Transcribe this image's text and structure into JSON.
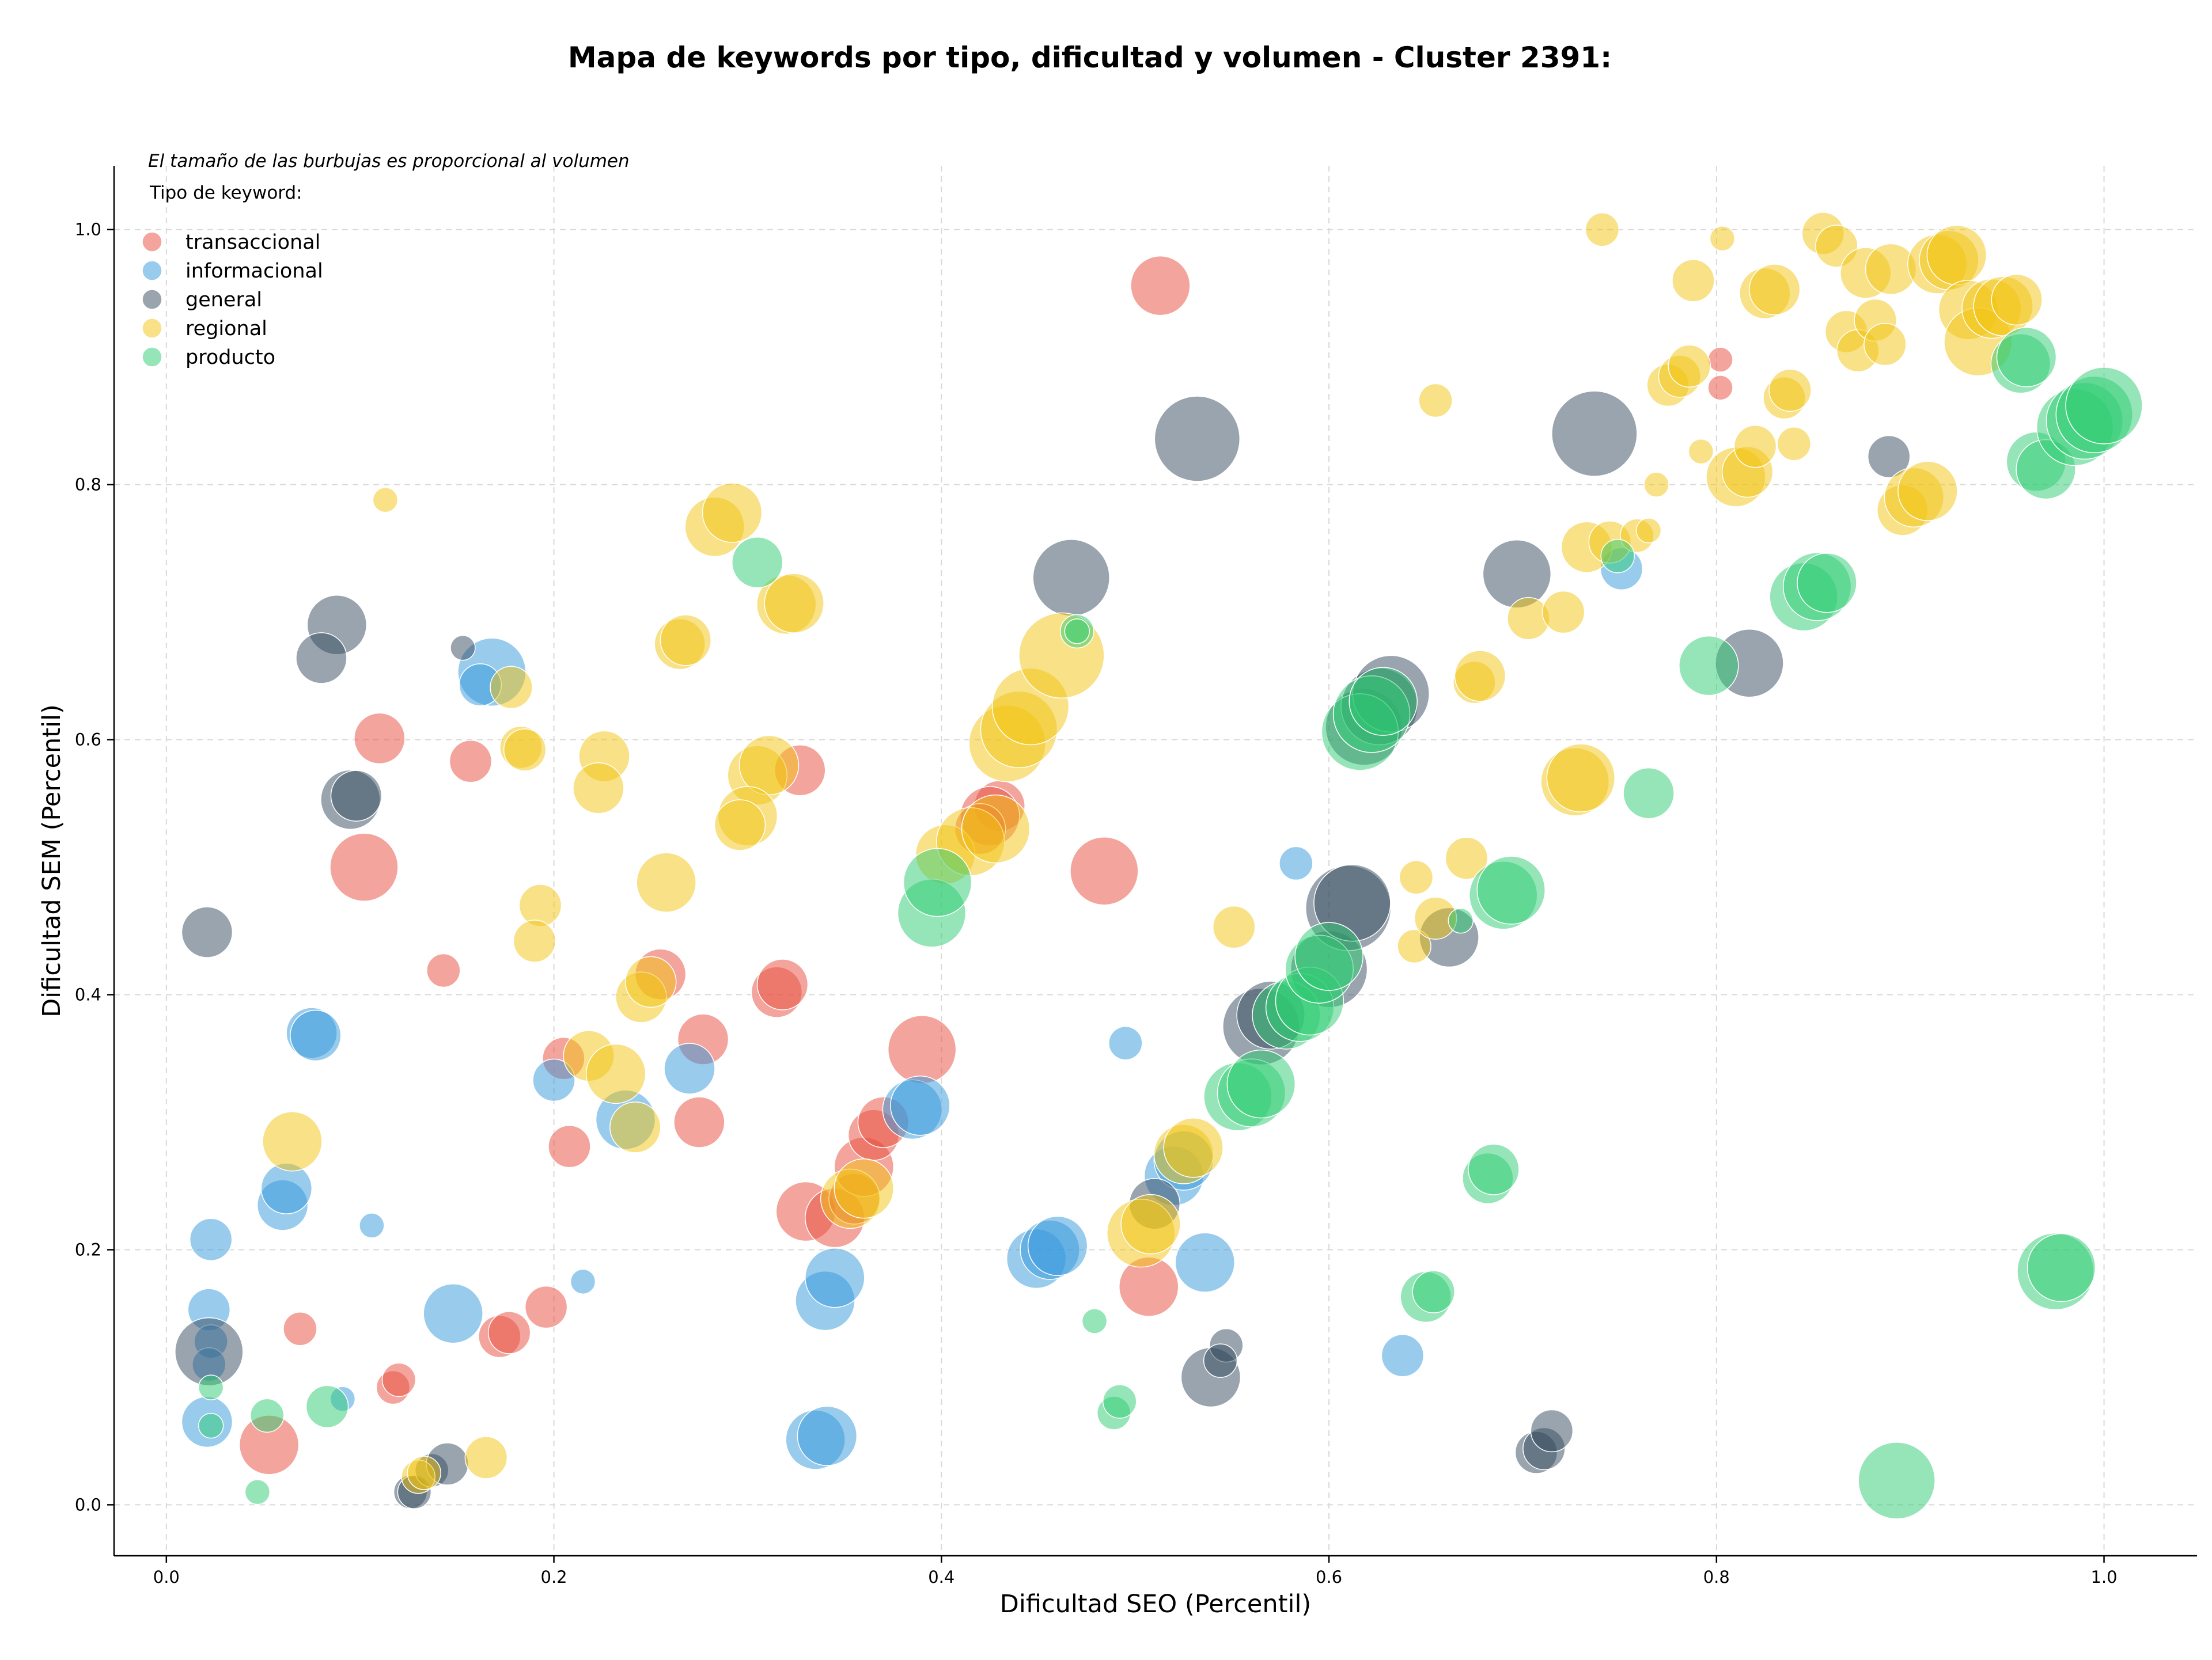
{
  "chart_data": {
    "type": "scatter",
    "title": "Mapa de keywords por tipo, dificultad y volumen - Cluster 2391:",
    "note": "El tamaño de las burbujas es proporcional al volumen",
    "xlabel": "Dificultad SEO (Percentil)",
    "ylabel": "Dificultad SEM (Percentil)",
    "xlim": [
      -0.027,
      1.048
    ],
    "ylim": [
      -0.04,
      1.05
    ],
    "xticks": [
      "0.0",
      "0.2",
      "0.4",
      "0.6",
      "0.8",
      "1.0"
    ],
    "xtick_values": [
      0,
      0.2,
      0.4,
      0.6,
      0.8,
      1.0
    ],
    "yticks": [
      "0.0",
      "0.2",
      "0.4",
      "0.6",
      "0.8",
      "1.0"
    ],
    "ytick_values": [
      0,
      0.2,
      0.4,
      0.6,
      0.8,
      1.0
    ],
    "grid": true,
    "legend": {
      "title": "Tipo de keyword:",
      "placement": "top-left"
    },
    "series": [
      {
        "name": "transaccional",
        "color": "#e74c3c",
        "points": [
          [
            0.513,
            0.956,
            5
          ],
          [
            0.11,
            0.601,
            4
          ],
          [
            0.102,
            0.5,
            6
          ],
          [
            0.157,
            0.583,
            3
          ],
          [
            0.143,
            0.419,
            2
          ],
          [
            0.205,
            0.35,
            3
          ],
          [
            0.208,
            0.281,
            3
          ],
          [
            0.255,
            0.416,
            4
          ],
          [
            0.277,
            0.365,
            4
          ],
          [
            0.275,
            0.3,
            4
          ],
          [
            0.315,
            0.402,
            4
          ],
          [
            0.318,
            0.408,
            4
          ],
          [
            0.327,
            0.576,
            4
          ],
          [
            0.39,
            0.357,
            6
          ],
          [
            0.33,
            0.23,
            5
          ],
          [
            0.345,
            0.225,
            5
          ],
          [
            0.355,
            0.24,
            4
          ],
          [
            0.36,
            0.265,
            5
          ],
          [
            0.365,
            0.29,
            4
          ],
          [
            0.37,
            0.3,
            4
          ],
          [
            0.43,
            0.548,
            4
          ],
          [
            0.425,
            0.54,
            5
          ],
          [
            0.42,
            0.53,
            4
          ],
          [
            0.484,
            0.497,
            6
          ],
          [
            0.507,
            0.171,
            5
          ],
          [
            0.053,
            0.047,
            5
          ],
          [
            0.069,
            0.138,
            2
          ],
          [
            0.117,
            0.092,
            2
          ],
          [
            0.12,
            0.098,
            2
          ],
          [
            0.172,
            0.132,
            3
          ],
          [
            0.177,
            0.135,
            3
          ],
          [
            0.196,
            0.155,
            3
          ],
          [
            0.802,
            0.898,
            1
          ],
          [
            0.802,
            0.876,
            1
          ]
        ]
      },
      {
        "name": "informacional",
        "color": "#3498db",
        "points": [
          [
            0.168,
            0.653,
            6
          ],
          [
            0.162,
            0.643,
            3
          ],
          [
            0.075,
            0.37,
            4
          ],
          [
            0.077,
            0.368,
            4
          ],
          [
            0.023,
            0.208,
            3
          ],
          [
            0.06,
            0.235,
            4
          ],
          [
            0.062,
            0.248,
            4
          ],
          [
            0.106,
            0.219,
            1
          ],
          [
            0.022,
            0.153,
            3
          ],
          [
            0.023,
            0.128,
            2
          ],
          [
            0.022,
            0.11,
            2
          ],
          [
            0.021,
            0.065,
            4
          ],
          [
            0.091,
            0.083,
            1
          ],
          [
            0.148,
            0.15,
            5
          ],
          [
            0.2,
            0.333,
            3
          ],
          [
            0.215,
            0.175,
            1
          ],
          [
            0.237,
            0.302,
            5
          ],
          [
            0.27,
            0.342,
            4
          ],
          [
            0.34,
            0.16,
            5
          ],
          [
            0.345,
            0.178,
            5
          ],
          [
            0.335,
            0.051,
            5
          ],
          [
            0.341,
            0.054,
            5
          ],
          [
            0.385,
            0.31,
            5
          ],
          [
            0.389,
            0.313,
            5
          ],
          [
            0.449,
            0.193,
            5
          ],
          [
            0.456,
            0.2,
            5
          ],
          [
            0.46,
            0.203,
            5
          ],
          [
            0.495,
            0.362,
            2
          ],
          [
            0.52,
            0.258,
            5
          ],
          [
            0.525,
            0.27,
            5
          ],
          [
            0.536,
            0.19,
            5
          ],
          [
            0.583,
            0.503,
            2
          ],
          [
            0.638,
            0.117,
            3
          ],
          [
            0.751,
            0.734,
            3
          ]
        ]
      },
      {
        "name": "general",
        "color": "#34495e",
        "points": [
          [
            0.532,
            0.836,
            8
          ],
          [
            0.737,
            0.84,
            8
          ],
          [
            0.467,
            0.727,
            7
          ],
          [
            0.088,
            0.69,
            5
          ],
          [
            0.08,
            0.664,
            4
          ],
          [
            0.153,
            0.672,
            1
          ],
          [
            0.095,
            0.553,
            5
          ],
          [
            0.098,
            0.556,
            4
          ],
          [
            0.021,
            0.449,
            4
          ],
          [
            0.022,
            0.12,
            6
          ],
          [
            0.126,
            0.01,
            2
          ],
          [
            0.128,
            0.01,
            2
          ],
          [
            0.137,
            0.027,
            2
          ],
          [
            0.145,
            0.032,
            3
          ],
          [
            0.51,
            0.236,
            4
          ],
          [
            0.539,
            0.1,
            5
          ],
          [
            0.547,
            0.125,
            2
          ],
          [
            0.544,
            0.113,
            2
          ],
          [
            0.565,
            0.375,
            7
          ],
          [
            0.57,
            0.384,
            6
          ],
          [
            0.6,
            0.42,
            7
          ],
          [
            0.61,
            0.468,
            8
          ],
          [
            0.612,
            0.472,
            7
          ],
          [
            0.618,
            0.61,
            7
          ],
          [
            0.626,
            0.626,
            7
          ],
          [
            0.632,
            0.636,
            7
          ],
          [
            0.662,
            0.445,
            5
          ],
          [
            0.697,
            0.73,
            6
          ],
          [
            0.707,
            0.041,
            3
          ],
          [
            0.711,
            0.044,
            3
          ],
          [
            0.715,
            0.058,
            3
          ],
          [
            0.817,
            0.66,
            6
          ],
          [
            0.889,
            0.822,
            3
          ]
        ]
      },
      {
        "name": "regional",
        "color": "#f1c40f",
        "points": [
          [
            0.113,
            0.788,
            1
          ],
          [
            0.283,
            0.767,
            5
          ],
          [
            0.292,
            0.778,
            5
          ],
          [
            0.32,
            0.706,
            5
          ],
          [
            0.324,
            0.707,
            5
          ],
          [
            0.265,
            0.675,
            4
          ],
          [
            0.268,
            0.678,
            4
          ],
          [
            0.178,
            0.641,
            3
          ],
          [
            0.183,
            0.594,
            3
          ],
          [
            0.185,
            0.592,
            3
          ],
          [
            0.226,
            0.587,
            4
          ],
          [
            0.223,
            0.562,
            4
          ],
          [
            0.305,
            0.572,
            5
          ],
          [
            0.311,
            0.58,
            5
          ],
          [
            0.3,
            0.54,
            5
          ],
          [
            0.296,
            0.533,
            4
          ],
          [
            0.258,
            0.488,
            5
          ],
          [
            0.193,
            0.47,
            3
          ],
          [
            0.19,
            0.442,
            3
          ],
          [
            0.245,
            0.398,
            4
          ],
          [
            0.25,
            0.41,
            4
          ],
          [
            0.218,
            0.352,
            4
          ],
          [
            0.232,
            0.338,
            5
          ],
          [
            0.242,
            0.296,
            4
          ],
          [
            0.065,
            0.285,
            5
          ],
          [
            0.165,
            0.037,
            3
          ],
          [
            0.13,
            0.022,
            2
          ],
          [
            0.133,
            0.025,
            2
          ],
          [
            0.353,
            0.24,
            5
          ],
          [
            0.36,
            0.248,
            5
          ],
          [
            0.402,
            0.51,
            5
          ],
          [
            0.415,
            0.52,
            6
          ],
          [
            0.428,
            0.53,
            6
          ],
          [
            0.434,
            0.597,
            7
          ],
          [
            0.44,
            0.608,
            7
          ],
          [
            0.446,
            0.626,
            7
          ],
          [
            0.462,
            0.666,
            8
          ],
          [
            0.503,
            0.213,
            6
          ],
          [
            0.508,
            0.22,
            5
          ],
          [
            0.525,
            0.275,
            5
          ],
          [
            0.53,
            0.28,
            5
          ],
          [
            0.551,
            0.453,
            3
          ],
          [
            0.644,
            0.438,
            2
          ],
          [
            0.645,
            0.492,
            2
          ],
          [
            0.655,
            0.866,
            2
          ],
          [
            0.655,
            0.46,
            3
          ],
          [
            0.671,
            0.507,
            3
          ],
          [
            0.675,
            0.645,
            3
          ],
          [
            0.678,
            0.65,
            4
          ],
          [
            0.703,
            0.695,
            3
          ],
          [
            0.721,
            0.7,
            3
          ],
          [
            0.727,
            0.567,
            6
          ],
          [
            0.73,
            0.57,
            6
          ],
          [
            0.733,
            0.751,
            4
          ],
          [
            0.741,
            1.0,
            2
          ],
          [
            0.745,
            0.755,
            3
          ],
          [
            0.759,
            0.76,
            2
          ],
          [
            0.765,
            0.764,
            1
          ],
          [
            0.769,
            0.8,
            1
          ],
          [
            0.775,
            0.878,
            3
          ],
          [
            0.781,
            0.885,
            3
          ],
          [
            0.786,
            0.893,
            3
          ],
          [
            0.788,
            0.96,
            3
          ],
          [
            0.792,
            0.826,
            1
          ],
          [
            0.803,
            0.993,
            1
          ],
          [
            0.81,
            0.806,
            5
          ],
          [
            0.816,
            0.81,
            4
          ],
          [
            0.82,
            0.83,
            3
          ],
          [
            0.825,
            0.95,
            4
          ],
          [
            0.83,
            0.953,
            4
          ],
          [
            0.835,
            0.868,
            3
          ],
          [
            0.838,
            0.874,
            3
          ],
          [
            0.84,
            0.832,
            2
          ],
          [
            0.855,
            0.997,
            3
          ],
          [
            0.862,
            0.987,
            3
          ],
          [
            0.867,
            0.92,
            3
          ],
          [
            0.873,
            0.905,
            3
          ],
          [
            0.877,
            0.966,
            4
          ],
          [
            0.882,
            0.929,
            3
          ],
          [
            0.887,
            0.91,
            3
          ],
          [
            0.89,
            0.969,
            4
          ],
          [
            0.896,
            0.78,
            4
          ],
          [
            0.902,
            0.79,
            5
          ],
          [
            0.909,
            0.795,
            5
          ],
          [
            0.914,
            0.973,
            5
          ],
          [
            0.92,
            0.976,
            5
          ],
          [
            0.924,
            0.98,
            5
          ],
          [
            0.93,
            0.937,
            5
          ],
          [
            0.935,
            0.912,
            6
          ],
          [
            0.942,
            0.938,
            5
          ],
          [
            0.948,
            0.94,
            5
          ],
          [
            0.955,
            0.945,
            4
          ]
        ]
      },
      {
        "name": "producto",
        "color": "#2ecc71",
        "points": [
          [
            0.305,
            0.739,
            4
          ],
          [
            0.47,
            0.685,
            2
          ],
          [
            0.395,
            0.464,
            6
          ],
          [
            0.398,
            0.488,
            6
          ],
          [
            0.47,
            0.685,
            1
          ],
          [
            0.052,
            0.07,
            2
          ],
          [
            0.047,
            0.01,
            1
          ],
          [
            0.083,
            0.077,
            3
          ],
          [
            0.023,
            0.092,
            1
          ],
          [
            0.023,
            0.062,
            1
          ],
          [
            0.479,
            0.144,
            1
          ],
          [
            0.489,
            0.072,
            2
          ],
          [
            0.492,
            0.081,
            2
          ],
          [
            0.553,
            0.32,
            6
          ],
          [
            0.56,
            0.323,
            6
          ],
          [
            0.565,
            0.33,
            6
          ],
          [
            0.578,
            0.384,
            6
          ],
          [
            0.585,
            0.39,
            6
          ],
          [
            0.59,
            0.395,
            6
          ],
          [
            0.595,
            0.42,
            6
          ],
          [
            0.6,
            0.43,
            6
          ],
          [
            0.616,
            0.606,
            7
          ],
          [
            0.622,
            0.62,
            7
          ],
          [
            0.628,
            0.63,
            6
          ],
          [
            0.65,
            0.163,
            4
          ],
          [
            0.654,
            0.167,
            3
          ],
          [
            0.668,
            0.458,
            1
          ],
          [
            0.682,
            0.256,
            4
          ],
          [
            0.685,
            0.263,
            4
          ],
          [
            0.69,
            0.478,
            6
          ],
          [
            0.694,
            0.482,
            6
          ],
          [
            0.749,
            0.744,
            2
          ],
          [
            0.765,
            0.558,
            4
          ],
          [
            0.796,
            0.658,
            5
          ],
          [
            0.845,
            0.712,
            6
          ],
          [
            0.852,
            0.72,
            6
          ],
          [
            0.857,
            0.723,
            5
          ],
          [
            0.893,
            0.019,
            7
          ],
          [
            0.957,
            0.895,
            5
          ],
          [
            0.96,
            0.9,
            5
          ],
          [
            0.965,
            0.818,
            5
          ],
          [
            0.97,
            0.812,
            5
          ],
          [
            0.975,
            0.183,
            7
          ],
          [
            0.978,
            0.186,
            6
          ],
          [
            0.985,
            0.845,
            7
          ],
          [
            0.99,
            0.85,
            7
          ],
          [
            0.995,
            0.855,
            7
          ],
          [
            1.0,
            0.862,
            7
          ]
        ]
      }
    ]
  }
}
